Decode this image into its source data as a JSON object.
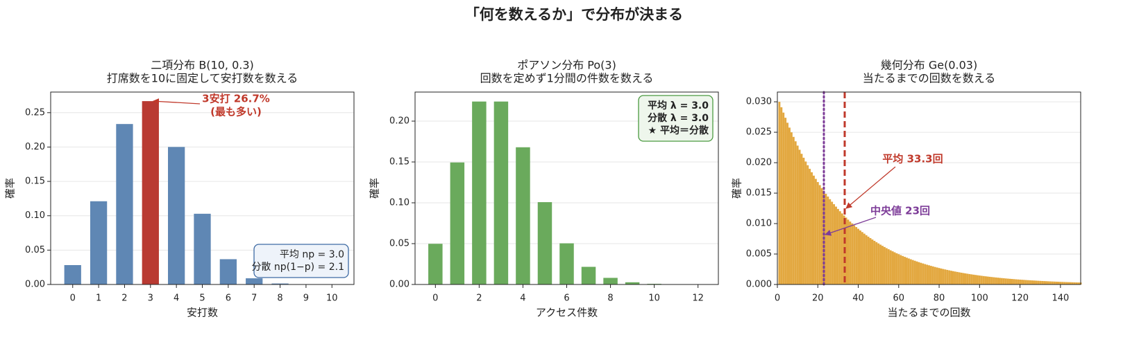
{
  "title": "「何を数えるか」で分布が決まる",
  "chart_data": [
    {
      "type": "bar",
      "title": [
        "二項分布 B(10, 0.3)",
        "打席数を10に固定して安打数を数える"
      ],
      "xlabel": "安打数",
      "ylabel": "確率",
      "x": [
        0,
        1,
        2,
        3,
        4,
        5,
        6,
        7,
        8,
        9,
        10
      ],
      "values": [
        0.0282,
        0.1211,
        0.2335,
        0.2668,
        0.2001,
        0.1029,
        0.0368,
        0.009,
        0.0014,
        0.0001,
        5.9e-06
      ],
      "colors": [
        "#5f87b4",
        "#5f87b4",
        "#5f87b4",
        "#b93a32",
        "#5f87b4",
        "#5f87b4",
        "#5f87b4",
        "#5f87b4",
        "#5f87b4",
        "#5f87b4",
        "#5f87b4"
      ],
      "bar_width": 0.65,
      "xlim": [
        -0.85,
        10.85
      ],
      "ylim": [
        0,
        0.28
      ],
      "xticks": [
        0,
        1,
        2,
        3,
        4,
        5,
        6,
        7,
        8,
        9,
        10
      ],
      "yticks": [
        {
          "value": 0,
          "label": "0.00"
        },
        {
          "value": 0.05,
          "label": "0.05"
        },
        {
          "value": 0.1,
          "label": "0.10"
        },
        {
          "value": 0.15,
          "label": "0.15"
        },
        {
          "value": 0.2,
          "label": "0.20"
        },
        {
          "value": 0.25,
          "label": "0.25"
        }
      ],
      "grid": true,
      "annotation": {
        "text": [
          "3安打 26.7%",
          "(最も多い)"
        ],
        "color": "#c0392b"
      },
      "info_box": {
        "text": [
          "平均 np = 3.0",
          "分散 np(1−p) = 2.1"
        ],
        "corner": "lower right",
        "border": "#3d6aa3",
        "background": "#eef3fa",
        "bold": false
      }
    },
    {
      "type": "bar",
      "title": [
        "ポアソン分布 Po(3)",
        "回数を定めず1分間の件数を数える"
      ],
      "xlabel": "アクセス件数",
      "ylabel": "確率",
      "x": [
        0,
        1,
        2,
        3,
        4,
        5,
        6,
        7,
        8,
        9,
        10,
        11,
        12
      ],
      "values": [
        0.0498,
        0.1494,
        0.224,
        0.224,
        0.168,
        0.1008,
        0.0504,
        0.0216,
        0.0081,
        0.0027,
        0.0008,
        0.0002,
        5e-05
      ],
      "color": "#6aaa5c",
      "bar_width": 0.65,
      "xlim": [
        -0.93,
        12.93
      ],
      "ylim": [
        0,
        0.2356
      ],
      "xticks": [
        0,
        2,
        4,
        6,
        8,
        10,
        12
      ],
      "yticks": [
        {
          "value": 0,
          "label": "0.00"
        },
        {
          "value": 0.05,
          "label": "0.05"
        },
        {
          "value": 0.1,
          "label": "0.10"
        },
        {
          "value": 0.15,
          "label": "0.15"
        },
        {
          "value": 0.2,
          "label": "0.20"
        }
      ],
      "grid": true,
      "info_box": {
        "text": [
          "平均 λ = 3.0",
          "分散 λ = 3.0",
          "★ 平均＝分散"
        ],
        "corner": "upper right",
        "border": "#4a9a40",
        "background": "#eef6ec",
        "bold": true
      }
    },
    {
      "type": "bar",
      "title": [
        "幾何分布 Ge(0.03)",
        "当たるまでの回数を数える"
      ],
      "xlabel": "当たるまでの回数",
      "ylabel": "確率",
      "x": [
        1,
        2,
        3,
        4,
        5,
        6,
        7,
        8,
        9,
        10,
        11,
        12,
        13,
        14,
        15,
        16,
        17,
        18,
        19,
        20,
        21,
        22,
        23,
        24,
        25,
        26,
        27,
        28,
        29,
        30,
        31,
        32,
        33,
        34,
        35,
        36,
        37,
        38,
        39,
        40,
        41,
        42,
        43,
        44,
        45,
        46,
        47,
        48,
        49,
        50,
        51,
        52,
        53,
        54,
        55,
        56,
        57,
        58,
        59,
        60,
        61,
        62,
        63,
        64,
        65,
        66,
        67,
        68,
        69,
        70,
        71,
        72,
        73,
        74,
        75,
        76,
        77,
        78,
        79,
        80,
        81,
        82,
        83,
        84,
        85,
        86,
        87,
        88,
        89,
        90,
        91,
        92,
        93,
        94,
        95,
        96,
        97,
        98,
        99,
        100,
        101,
        102,
        103,
        104,
        105,
        106,
        107,
        108,
        109,
        110,
        111,
        112,
        113,
        114,
        115,
        116,
        117,
        118,
        119,
        120,
        121,
        122,
        123,
        124,
        125,
        126,
        127,
        128,
        129,
        130,
        131,
        132,
        133,
        134,
        135,
        136,
        137,
        138,
        139,
        140,
        141,
        142,
        143,
        144,
        145,
        146,
        147,
        148,
        149,
        150
      ],
      "values": [
        0.03,
        0.0291,
        0.028227,
        0.02738,
        0.026559,
        0.025762,
        0.024989,
        0.02424,
        0.023513,
        0.022807,
        0.022123,
        0.021459,
        0.020815,
        0.020191,
        0.019585,
        0.018998,
        0.018428,
        0.017875,
        0.017339,
        0.016819,
        0.016314,
        0.015825,
        0.01535,
        0.014889,
        0.014443,
        0.01401,
        0.013589,
        0.013182,
        0.012786,
        0.012403,
        0.012031,
        0.01167,
        0.01132,
        0.01098,
        0.010651,
        0.010331,
        0.010021,
        0.009721,
        0.009429,
        0.009146,
        0.008872,
        0.008606,
        0.008348,
        0.008097,
        0.007854,
        0.007619,
        0.00739,
        0.007168,
        0.006953,
        0.006745,
        0.006542,
        0.006346,
        0.006156,
        0.005971,
        0.005792,
        0.005618,
        0.00545,
        0.005286,
        0.005128,
        0.004974,
        0.004825,
        0.00468,
        0.00454,
        0.004404,
        0.004271,
        0.004143,
        0.004019,
        0.003898,
        0.003781,
        0.003668,
        0.003558,
        0.003451,
        0.003348,
        0.003247,
        0.00315,
        0.003055,
        0.002964,
        0.002875,
        0.002789,
        0.002705,
        0.002624,
        0.002545,
        0.002469,
        0.002395,
        0.002323,
        0.002253,
        0.002186,
        0.00212,
        0.002057,
        0.001995,
        0.001935,
        0.001877,
        0.001821,
        0.001766,
        0.001713,
        0.001662,
        0.001612,
        0.001564,
        0.001517,
        0.001471,
        0.001427,
        0.001384,
        0.001343,
        0.001302,
        0.001263,
        0.001226,
        0.001189,
        0.001153,
        0.001119,
        0.001085,
        0.001052,
        0.001021,
        0.00099,
        0.000961,
        0.000932,
        0.000904,
        0.000877,
        0.00085,
        0.000825,
        0.0008,
        0.000776,
        0.000753,
        0.00073,
        0.000708,
        0.000687,
        0.000667,
        0.000647,
        0.000627,
        0.000608,
        0.00059,
        0.000572,
        0.000555,
        0.000539,
        0.000522,
        0.000507,
        0.000491,
        0.000477,
        0.000462,
        0.000449,
        0.000435,
        0.000422,
        0.000409,
        0.000397,
        0.000385,
        0.000374,
        0.000362,
        0.000351,
        0.000341,
        0.000331,
        0.000321
      ],
      "color": "#e3a840",
      "bar_width": 1,
      "xlim": [
        0,
        150
      ],
      "ylim": [
        0,
        0.0316
      ],
      "xticks": [
        0,
        20,
        40,
        60,
        80,
        100,
        120,
        140
      ],
      "yticks": [
        {
          "value": 0,
          "label": "0.000"
        },
        {
          "value": 0.005,
          "label": "0.005"
        },
        {
          "value": 0.01,
          "label": "0.010"
        },
        {
          "value": 0.015,
          "label": "0.015"
        },
        {
          "value": 0.02,
          "label": "0.020"
        },
        {
          "value": 0.025,
          "label": "0.025"
        },
        {
          "value": 0.03,
          "label": "0.030"
        }
      ],
      "grid": true,
      "vlines": [
        {
          "value": 23,
          "label": "中央値 23回",
          "color": "#7d3c98",
          "style": "dotted"
        },
        {
          "value": 33.3,
          "label": "平均 33.3回",
          "color": "#c0392b",
          "style": "dashed"
        }
      ]
    }
  ]
}
